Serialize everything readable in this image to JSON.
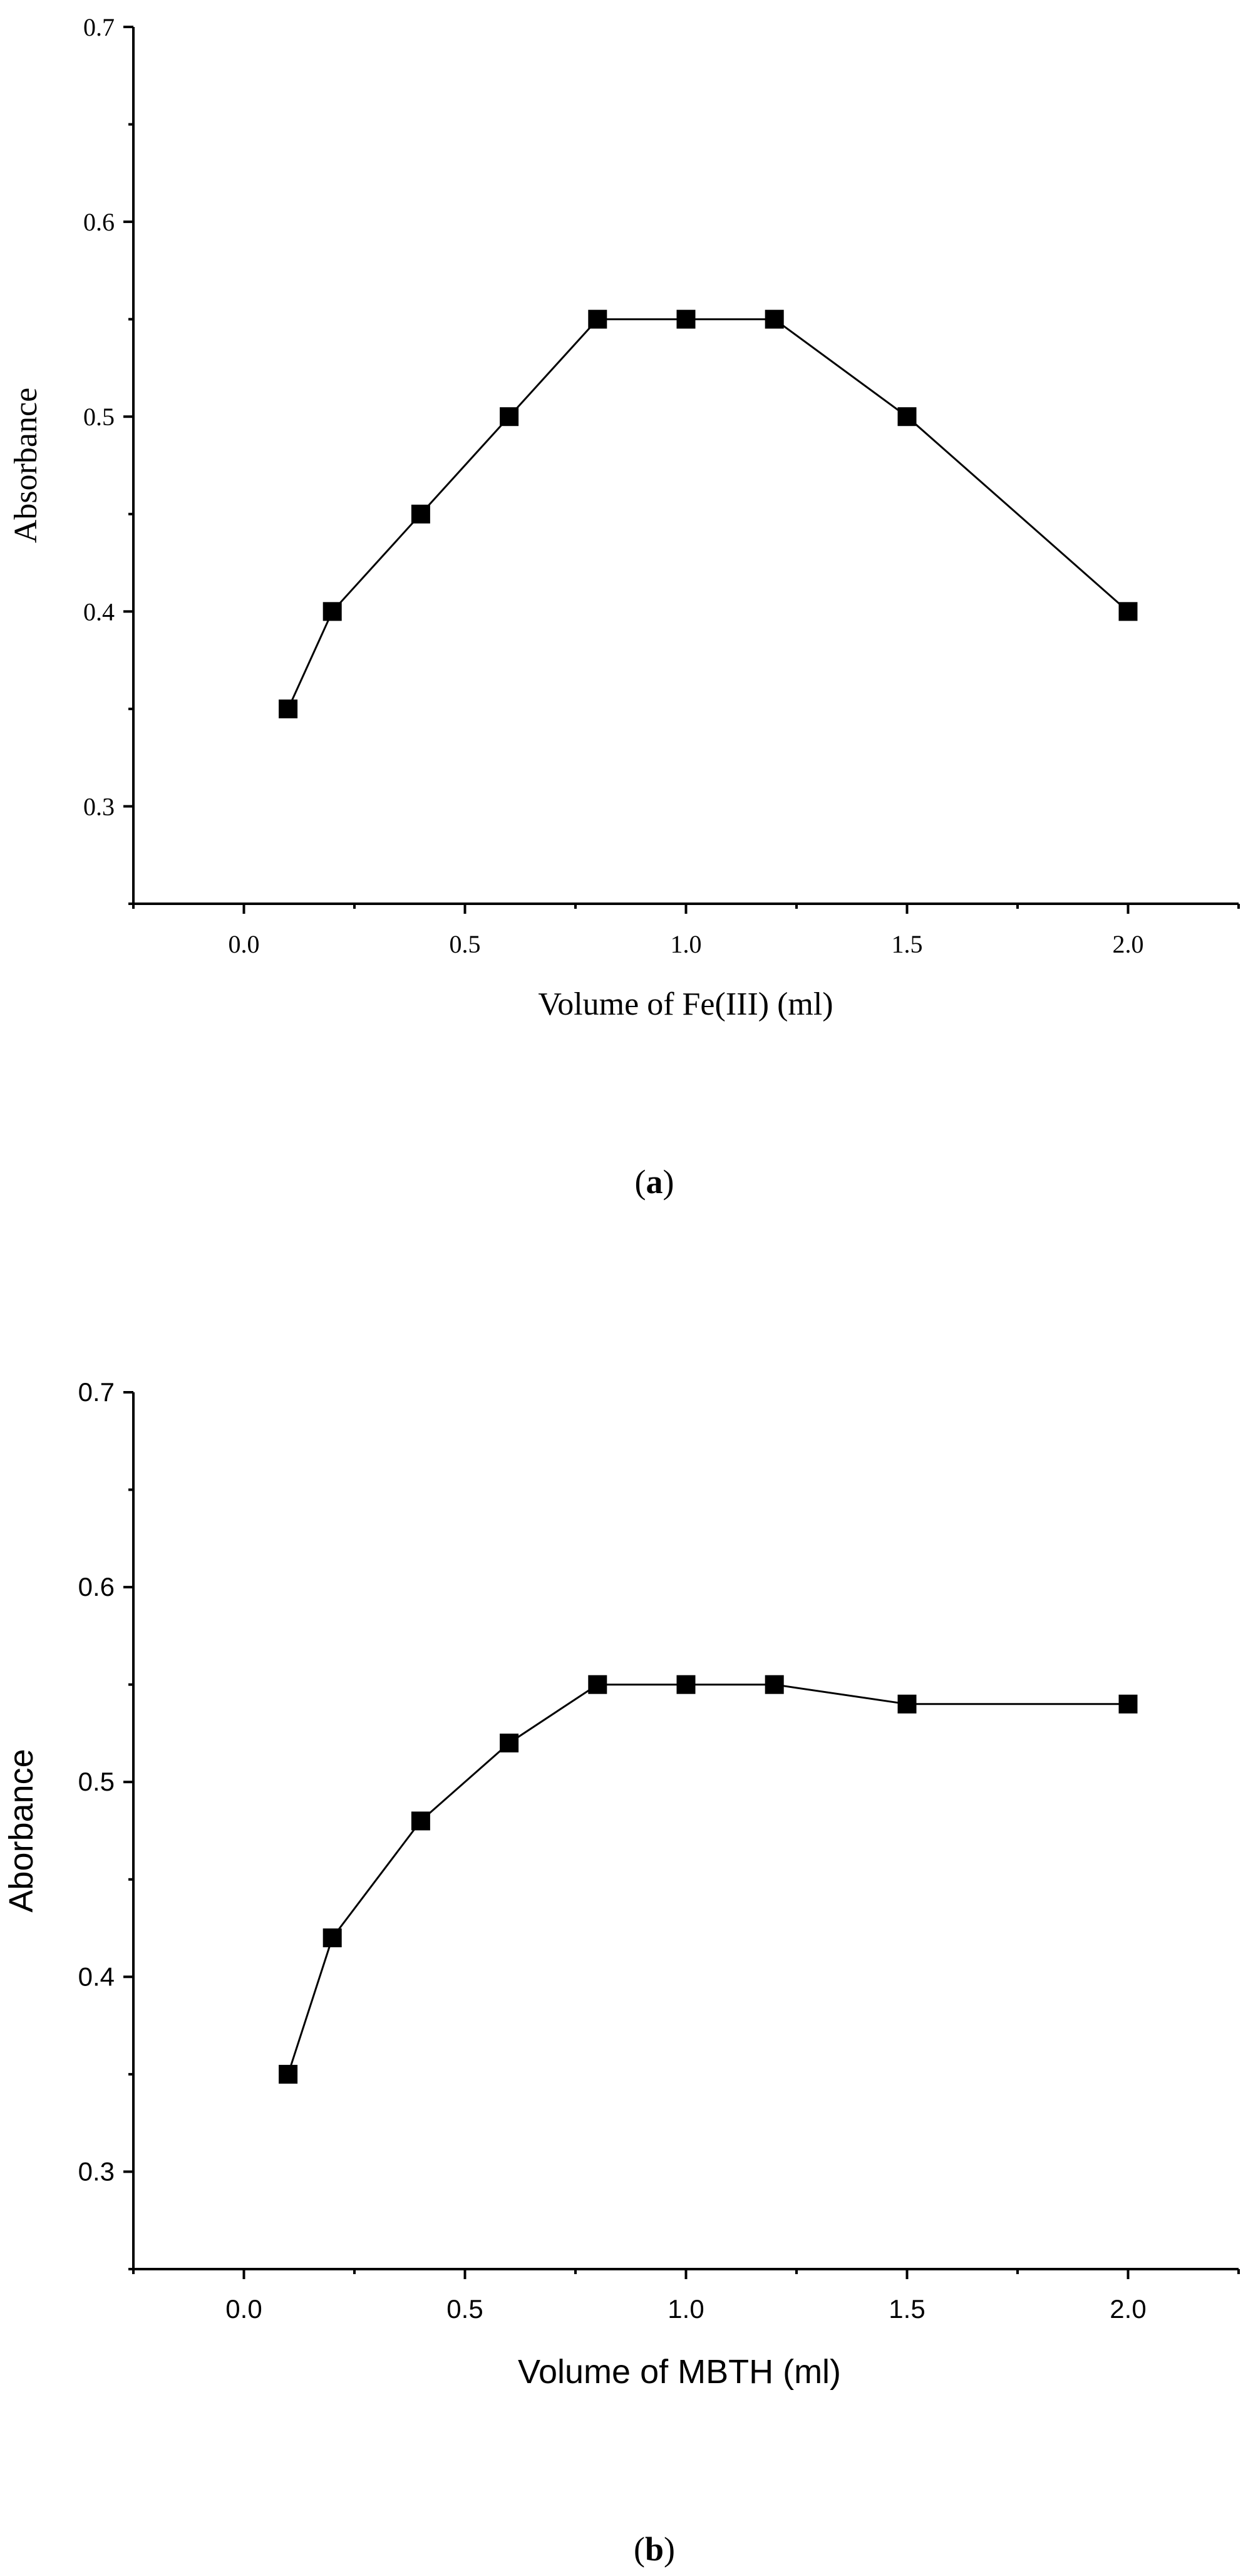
{
  "chart_data": [
    {
      "type": "line",
      "caption": {
        "open": "(",
        "letter": "a",
        "close": ")"
      },
      "xlabel": "Volume of Fe(III) (ml)",
      "ylabel": "Absorbance",
      "xlim": [
        -0.25,
        2.25
      ],
      "ylim": [
        0.25,
        0.7
      ],
      "xticks": [
        0.0,
        0.5,
        1.0,
        1.5,
        2.0
      ],
      "xtick_labels": [
        "0.0",
        "0.5",
        "1.0",
        "1.5",
        "2.0"
      ],
      "yticks": [
        0.3,
        0.4,
        0.5,
        0.6,
        0.7
      ],
      "ytick_labels": [
        "0.3",
        "0.4",
        "0.5",
        "0.6",
        "0.7"
      ],
      "series": [
        {
          "marker": "square",
          "color": "#000000",
          "x": [
            0.1,
            0.2,
            0.4,
            0.6,
            0.8,
            1.0,
            1.2,
            1.5,
            2.0
          ],
          "y": [
            0.35,
            0.4,
            0.45,
            0.5,
            0.55,
            0.55,
            0.55,
            0.5,
            0.4
          ]
        }
      ]
    },
    {
      "type": "line",
      "caption": {
        "open": "(",
        "letter": "b",
        "close": ")"
      },
      "xlabel": "Volume of MBTH (ml)",
      "ylabel": "Aborbance",
      "xlim": [
        -0.25,
        2.25
      ],
      "ylim": [
        0.25,
        0.7
      ],
      "xticks": [
        0.0,
        0.5,
        1.0,
        1.5,
        2.0
      ],
      "xtick_labels": [
        "0.0",
        "0.5",
        "1.0",
        "1.5",
        "2.0"
      ],
      "yticks": [
        0.3,
        0.4,
        0.5,
        0.6,
        0.7
      ],
      "ytick_labels": [
        "0.3",
        "0.4",
        "0.5",
        "0.6",
        "0.7"
      ],
      "series": [
        {
          "marker": "square",
          "color": "#000000",
          "x": [
            0.1,
            0.2,
            0.4,
            0.6,
            0.8,
            1.0,
            1.2,
            1.5,
            2.0
          ],
          "y": [
            0.35,
            0.42,
            0.48,
            0.52,
            0.55,
            0.55,
            0.55,
            0.54,
            0.54
          ]
        }
      ]
    }
  ]
}
